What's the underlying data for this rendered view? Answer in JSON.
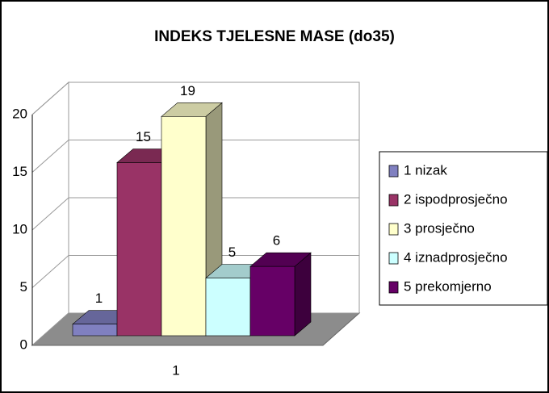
{
  "chart_data": {
    "type": "bar3d",
    "title": "INDEKS TJELESNE MASE (do35)",
    "categories": [
      "1"
    ],
    "series": [
      {
        "name": "1 nizak",
        "color": "#8080c0",
        "values": [
          1
        ]
      },
      {
        "name": "2 ispodprosječno",
        "color": "#993366",
        "values": [
          15
        ]
      },
      {
        "name": "3 prosječno",
        "color": "#ffffcc",
        "values": [
          19
        ]
      },
      {
        "name": "4 iznadprosječno",
        "color": "#ccffff",
        "values": [
          5
        ]
      },
      {
        "name": "5 prekomjerno",
        "color": "#660066",
        "values": [
          6
        ]
      }
    ],
    "ylim": [
      0,
      20
    ],
    "yticks": [
      0,
      5,
      10,
      15,
      20
    ],
    "grid": true,
    "legend": "right"
  }
}
